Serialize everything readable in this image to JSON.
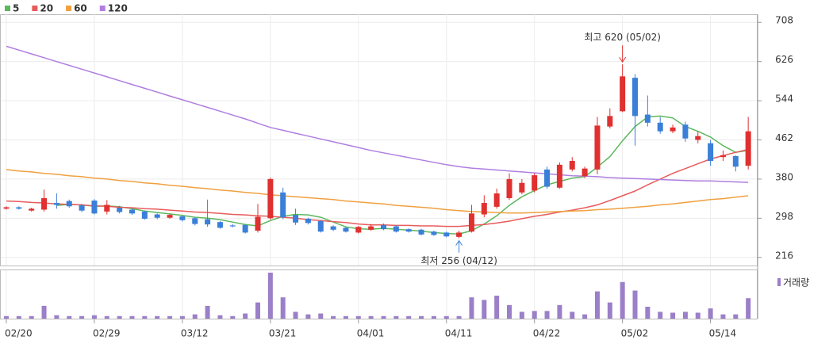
{
  "chart_data": {
    "type": "candlestick",
    "categories": [
      "02/20",
      null,
      null,
      null,
      null,
      null,
      null,
      "02/29",
      null,
      null,
      null,
      null,
      null,
      null,
      "03/12",
      null,
      null,
      null,
      null,
      null,
      null,
      "03/21",
      null,
      null,
      null,
      null,
      null,
      null,
      "04/01",
      null,
      null,
      null,
      null,
      null,
      null,
      "04/11",
      null,
      null,
      null,
      null,
      null,
      null,
      "04/22",
      null,
      null,
      null,
      null,
      null,
      null,
      "05/02",
      null,
      null,
      null,
      null,
      null,
      null,
      "05/14",
      null,
      null,
      null
    ],
    "open": [
      318,
      321,
      314,
      316,
      330,
      334,
      325,
      335,
      312,
      320,
      316,
      312,
      306,
      299,
      302,
      298,
      296,
      290,
      283,
      284,
      272,
      298,
      352,
      305,
      297,
      292,
      281,
      278,
      268,
      274,
      284,
      281,
      275,
      274,
      270,
      268,
      259,
      270,
      306,
      322,
      340,
      352,
      356,
      400,
      362,
      400,
      386,
      400,
      490,
      522,
      592,
      515,
      498,
      480,
      494,
      462,
      455,
      426,
      428,
      408
    ],
    "high": [
      323,
      323,
      320,
      358,
      350,
      337,
      328,
      338,
      336,
      324,
      318,
      314,
      308,
      307,
      304,
      300,
      337,
      292,
      286,
      286,
      328,
      383,
      362,
      318,
      299,
      294,
      283,
      280,
      282,
      286,
      287,
      283,
      277,
      276,
      272,
      270,
      272,
      326,
      346,
      360,
      392,
      380,
      392,
      406,
      415,
      426,
      406,
      510,
      528,
      620,
      600,
      555,
      510,
      494,
      500,
      480,
      462,
      440,
      430,
      510
    ],
    "low": [
      316,
      316,
      312,
      312,
      318,
      320,
      311,
      306,
      306,
      308,
      305,
      295,
      296,
      297,
      291,
      283,
      280,
      276,
      279,
      266,
      268,
      295,
      296,
      284,
      285,
      268,
      271,
      268,
      266,
      272,
      273,
      268,
      268,
      262,
      261,
      258,
      256,
      268,
      300,
      318,
      336,
      348,
      352,
      360,
      360,
      396,
      382,
      390,
      486,
      520,
      450,
      490,
      475,
      476,
      458,
      455,
      408,
      418,
      396,
      400
    ],
    "close": [
      321,
      318,
      318,
      340,
      326,
      323,
      314,
      308,
      326,
      311,
      308,
      297,
      299,
      305,
      294,
      286,
      285,
      278,
      281,
      268,
      301,
      380,
      300,
      289,
      288,
      270,
      274,
      270,
      280,
      281,
      275,
      270,
      270,
      264,
      263,
      260,
      268,
      308,
      330,
      350,
      380,
      372,
      388,
      364,
      410,
      418,
      402,
      492,
      512,
      595,
      512,
      498,
      480,
      488,
      465,
      470,
      418,
      430,
      406,
      480
    ],
    "up_color": "#e03030",
    "down_color": "#3a7fd8",
    "ma": [
      {
        "name": "5",
        "color": "#5cb85c",
        "values": [
          null,
          null,
          null,
          null,
          325,
          327,
          326,
          323,
          324,
          322,
          318,
          313,
          310,
          307,
          304,
          300,
          298,
          295,
          290,
          285,
          282,
          293,
          302,
          306,
          305,
          300,
          290,
          280,
          276,
          275,
          277,
          275,
          273,
          271,
          268,
          266,
          265,
          272,
          286,
          303,
          325,
          343,
          356,
          368,
          375,
          382,
          385,
          405,
          427,
          460,
          490,
          510,
          512,
          508,
          490,
          480,
          468,
          450,
          436,
          440
        ]
      },
      {
        "name": "20",
        "color": "#e85b5b",
        "values": [
          334,
          333,
          331,
          330,
          328,
          327,
          326,
          324,
          323,
          321,
          320,
          318,
          317,
          315,
          313,
          311,
          310,
          308,
          306,
          305,
          303,
          302,
          300,
          298,
          295,
          293,
          291,
          289,
          286,
          284,
          284,
          283,
          283,
          282,
          282,
          281,
          281,
          283,
          285,
          288,
          292,
          297,
          302,
          306,
          311,
          315,
          320,
          326,
          335,
          345,
          355,
          368,
          380,
          392,
          402,
          412,
          422,
          429,
          436,
          442
        ]
      },
      {
        "name": "60",
        "color": "#f0a040",
        "values": [
          400,
          397,
          395,
          392,
          390,
          387,
          385,
          382,
          380,
          377,
          375,
          372,
          370,
          367,
          365,
          362,
          360,
          357,
          355,
          352,
          350,
          347,
          345,
          343,
          341,
          339,
          337,
          334,
          332,
          330,
          328,
          325,
          323,
          321,
          319,
          316,
          314,
          312,
          311,
          310,
          309,
          309,
          310,
          311,
          312,
          313,
          314,
          316,
          317,
          319,
          321,
          323,
          326,
          328,
          331,
          334,
          337,
          339,
          342,
          345
        ]
      },
      {
        "name": "120",
        "color": "#b07ee0",
        "values": [
          658,
          650,
          642,
          634,
          626,
          618,
          610,
          602,
          594,
          586,
          578,
          570,
          562,
          554,
          546,
          538,
          530,
          522,
          514,
          506,
          497,
          488,
          482,
          476,
          470,
          464,
          458,
          452,
          446,
          440,
          435,
          430,
          425,
          420,
          415,
          410,
          406,
          403,
          401,
          399,
          397,
          395,
          393,
          391,
          389,
          387,
          386,
          385,
          383,
          382,
          381,
          380,
          379,
          378,
          377,
          376,
          376,
          375,
          374,
          373
        ]
      }
    ],
    "volume": {
      "name": "거래량",
      "color": "#9b7fc8",
      "values": [
        3,
        3,
        3,
        15,
        4,
        3,
        3,
        4,
        3,
        3,
        3,
        3,
        3,
        3,
        3,
        5,
        15,
        4,
        3,
        6,
        19,
        54,
        25,
        8,
        5,
        6,
        3,
        3,
        3,
        3,
        3,
        3,
        3,
        3,
        3,
        3,
        3,
        25,
        22,
        27,
        16,
        8,
        9,
        9,
        16,
        8,
        5,
        32,
        19,
        43,
        33,
        14,
        8,
        7,
        8,
        7,
        12,
        5,
        5,
        24
      ]
    },
    "annotations": {
      "high": "최고 620 (05/02)",
      "low": "최저 256 (04/12)"
    },
    "ylim": [
      199,
      725
    ],
    "yticks": [
      216,
      298,
      380,
      462,
      544,
      626,
      708
    ],
    "grid": true
  }
}
